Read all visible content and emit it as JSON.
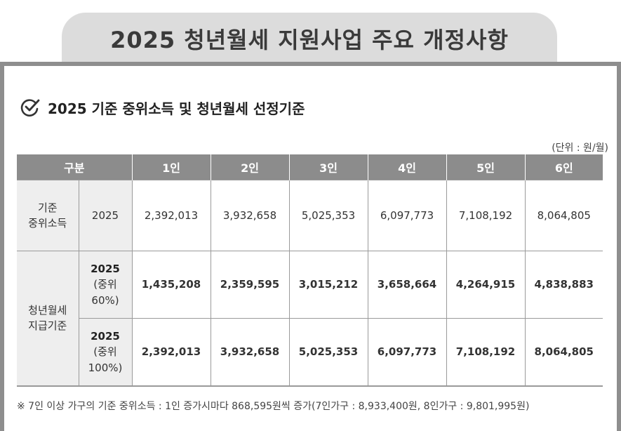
{
  "title": "2025 청년월세 지원사업 주요 개정사항",
  "section_title": "2025 기준 중위소득 및 청년월세 선정기준",
  "unit": "(단위 : 원/월)",
  "header": {
    "category": "구분",
    "cols": [
      "1인",
      "2인",
      "3인",
      "4인",
      "5인",
      "6인"
    ]
  },
  "rows": {
    "median": {
      "category": [
        "기준",
        "중위소득"
      ],
      "sub": "2025",
      "values": [
        "2,392,013",
        "3,932,658",
        "5,025,353",
        "6,097,773",
        "7,108,192",
        "8,064,805"
      ]
    },
    "support": {
      "category": [
        "청년월세",
        "지급기준"
      ],
      "sub60": [
        "2025",
        "(중위",
        "60%)"
      ],
      "values60": [
        "1,435,208",
        "2,359,595",
        "3,015,212",
        "3,658,664",
        "4,264,915",
        "4,838,883"
      ],
      "sub100": [
        "2025",
        "(중위",
        "100%)"
      ],
      "values100": [
        "2,392,013",
        "3,932,658",
        "5,025,353",
        "6,097,773",
        "7,108,192",
        "8,064,805"
      ]
    }
  },
  "footnote": "※ 7인 이상 가구의 기준 중위소득 : 1인 증가시마다 868,595원씩 증가(7인가구 : 8,933,400원, 8인가구 : 9,801,995원)",
  "icons": {
    "section": "check-circle-icon"
  },
  "colors": {
    "header_bg": "#8c8c8c",
    "tab_bg": "#dcdcdc",
    "panel_border": "#8e8e8e"
  }
}
